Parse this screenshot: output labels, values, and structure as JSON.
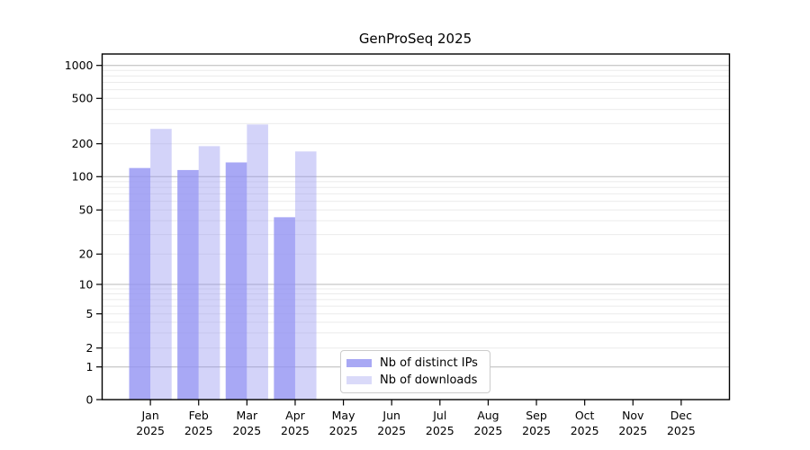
{
  "title": "GenProSeq 2025",
  "chart_data": {
    "type": "bar",
    "categories": [
      "Jan",
      "Feb",
      "Mar",
      "Apr",
      "May",
      "Jun",
      "Jul",
      "Aug",
      "Sep",
      "Oct",
      "Nov",
      "Dec"
    ],
    "x_sub_label": "2025",
    "series": [
      {
        "name": "Nb of distinct IPs",
        "color": "#a8a8f4",
        "fill_rgba": "rgba(146,146,242,0.80)",
        "values": [
          120,
          115,
          135,
          43,
          0,
          0,
          0,
          0,
          0,
          0,
          0,
          0
        ]
      },
      {
        "name": "Nb of downloads",
        "color": "#dadaf9",
        "fill_rgba": "rgba(150,150,240,0.42)",
        "values": [
          270,
          190,
          295,
          170,
          0,
          0,
          0,
          0,
          0,
          0,
          0,
          0
        ]
      }
    ],
    "yscale": "asinh",
    "y_ticks": [
      0,
      1,
      2,
      5,
      10,
      20,
      50,
      100,
      200,
      500,
      1000
    ],
    "ylim": [
      0,
      1165
    ],
    "grid": {
      "major_color": "#b8b8b8",
      "minor_color": "#ebebeb"
    },
    "legend_position": "lower center-left inside plot"
  },
  "axes": {
    "frame_color": "#000000",
    "tick_label_color": "#000000"
  }
}
